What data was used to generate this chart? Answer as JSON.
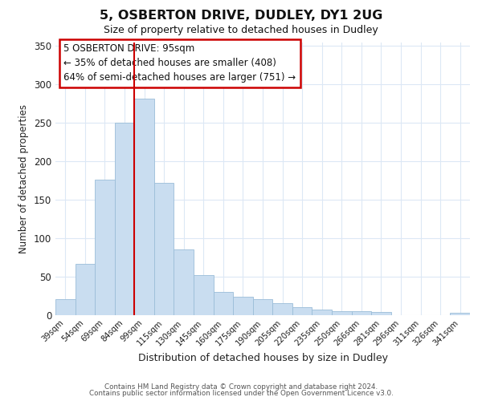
{
  "title": "5, OSBERTON DRIVE, DUDLEY, DY1 2UG",
  "subtitle": "Size of property relative to detached houses in Dudley",
  "xlabel": "Distribution of detached houses by size in Dudley",
  "ylabel": "Number of detached properties",
  "bar_labels": [
    "39sqm",
    "54sqm",
    "69sqm",
    "84sqm",
    "99sqm",
    "115sqm",
    "130sqm",
    "145sqm",
    "160sqm",
    "175sqm",
    "190sqm",
    "205sqm",
    "220sqm",
    "235sqm",
    "250sqm",
    "266sqm",
    "281sqm",
    "296sqm",
    "311sqm",
    "326sqm",
    "341sqm"
  ],
  "bar_values": [
    20,
    66,
    176,
    250,
    281,
    172,
    85,
    52,
    30,
    24,
    20,
    15,
    10,
    7,
    5,
    5,
    4,
    0,
    0,
    0,
    3
  ],
  "bar_color": "#c9ddf0",
  "bar_edge_color": "#9bbdd8",
  "vline_x_idx": 4,
  "vline_color": "#cc0000",
  "annotation_title": "5 OSBERTON DRIVE: 95sqm",
  "annotation_line1": "← 35% of detached houses are smaller (408)",
  "annotation_line2": "64% of semi-detached houses are larger (751) →",
  "annotation_box_color": "#ffffff",
  "annotation_box_edge": "#cc0000",
  "ylim": [
    0,
    355
  ],
  "yticks": [
    0,
    50,
    100,
    150,
    200,
    250,
    300,
    350
  ],
  "footer1": "Contains HM Land Registry data © Crown copyright and database right 2024.",
  "footer2": "Contains public sector information licensed under the Open Government Licence v3.0.",
  "background_color": "#ffffff",
  "grid_color": "#dce8f5"
}
